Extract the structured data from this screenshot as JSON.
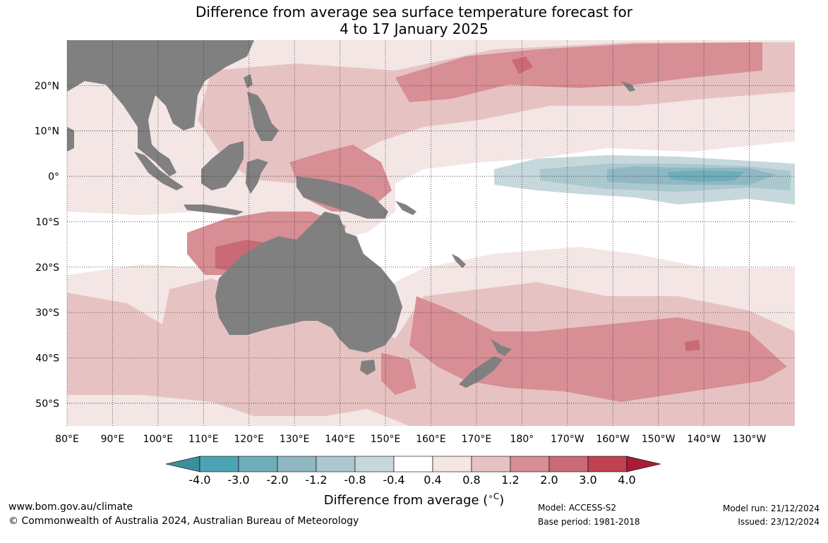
{
  "title": {
    "line1": "Difference from average sea surface temperature forecast for",
    "line2": "4 to 17 January 2025"
  },
  "map": {
    "lon_labels": [
      "80°E",
      "90°E",
      "100°E",
      "110°E",
      "120°E",
      "130°E",
      "140°E",
      "150°E",
      "160°E",
      "170°E",
      "180°",
      "170°W",
      "160°W",
      "150°W",
      "140°W",
      "130°W"
    ],
    "lat_labels": [
      "20°N",
      "10°N",
      "0°",
      "10°S",
      "20°S",
      "30°S",
      "40°S",
      "50°S"
    ],
    "lat_values": [
      20,
      10,
      0,
      -10,
      -20,
      -30,
      -40,
      -50
    ],
    "lon_values": [
      80,
      90,
      100,
      110,
      120,
      130,
      140,
      150,
      160,
      170,
      180,
      190,
      200,
      210,
      220,
      230
    ],
    "lon_range": [
      80,
      240
    ],
    "lat_range": [
      -55,
      30
    ],
    "land_color": "#808080",
    "grid": "dotted"
  },
  "colorbar": {
    "ticks": [
      "-4.0",
      "-3.0",
      "-2.0",
      "-1.2",
      "-0.8",
      "-0.4",
      "0.4",
      "0.8",
      "1.2",
      "2.0",
      "3.0",
      "4.0"
    ],
    "colors": [
      "#3a8f9c",
      "#4ba3b3",
      "#6eaebb",
      "#8fb8c3",
      "#aac8ce",
      "#c7d8dc",
      "#ffffff",
      "#f3e6e5",
      "#e6c3c2",
      "#d78e94",
      "#c96a75",
      "#be4250",
      "#a81c36"
    ],
    "label": "Difference from average (°C)",
    "label_prefix": "Difference from average (",
    "label_unit": "∘C",
    "label_suffix": ")"
  },
  "footer": {
    "website": "www.bom.gov.au/climate",
    "copyright": "© Commonwealth of Australia 2024, Australian Bureau of Meteorology",
    "model": "Model: ACCESS-S2",
    "base_period": "Base period: 1981-2018",
    "model_run": "Model run: 21/12/2024",
    "issued": "Issued: 23/12/2024"
  }
}
